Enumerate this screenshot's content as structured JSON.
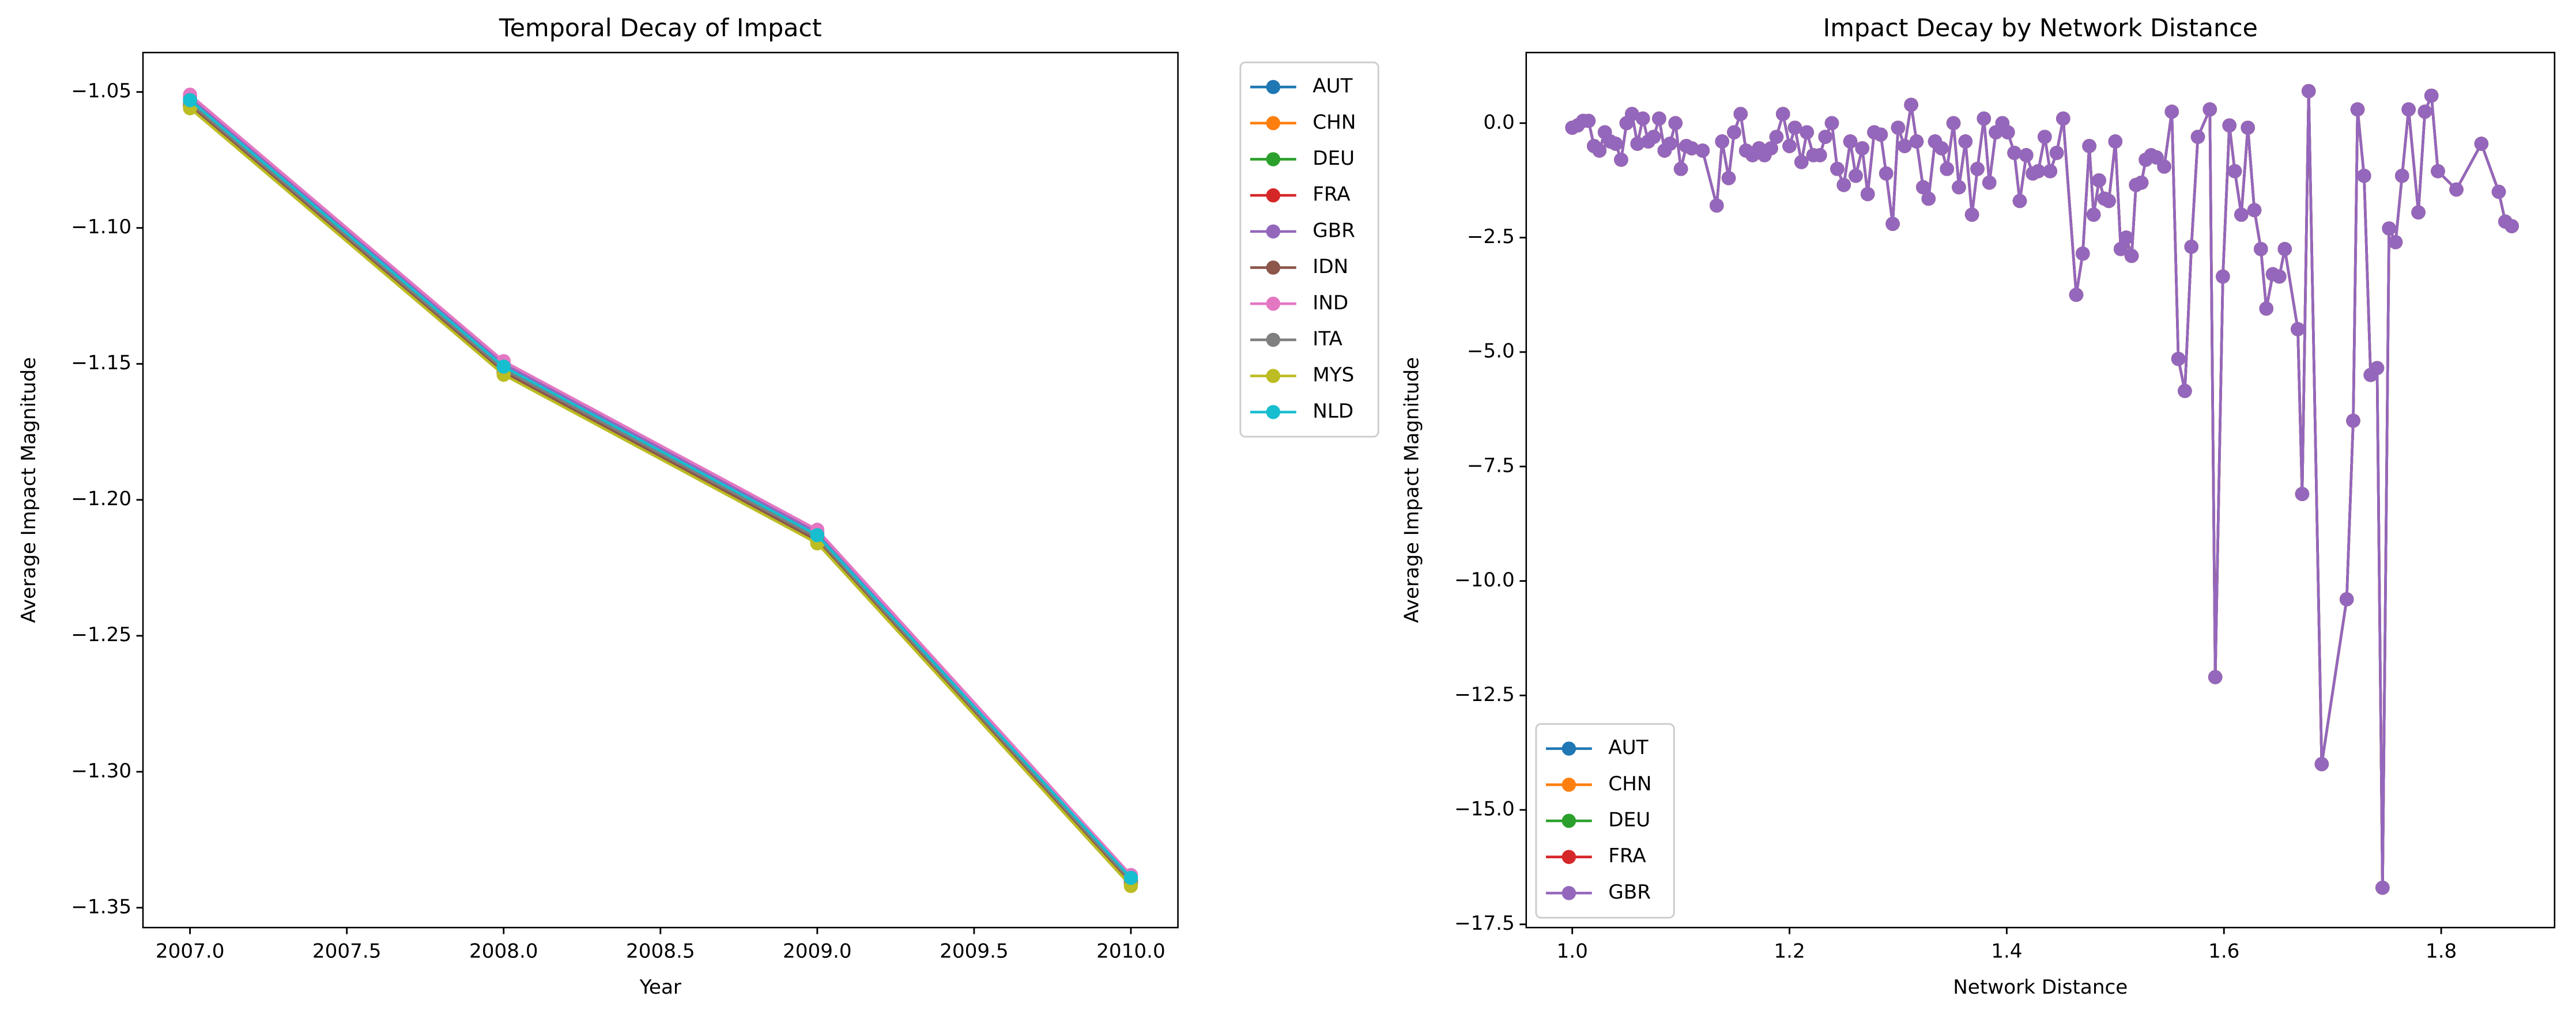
{
  "chart_data": [
    {
      "type": "line",
      "title": "Temporal Decay of Impact",
      "xlabel": "Year",
      "ylabel": "Average Impact Magnitude",
      "legend": "outside-upper-right",
      "x": [
        2007,
        2008,
        2009,
        2010
      ],
      "xlim": [
        2006.85,
        2010.15
      ],
      "xticks": [
        {
          "value": 2007,
          "label": "2007.0"
        },
        {
          "value": 2007.5,
          "label": "2007.5"
        },
        {
          "value": 2008,
          "label": "2008.0"
        },
        {
          "value": 2008.5,
          "label": "2008.5"
        },
        {
          "value": 2009,
          "label": "2009.0"
        },
        {
          "value": 2009.5,
          "label": "2009.5"
        },
        {
          "value": 2010,
          "label": "2010.0"
        }
      ],
      "ylim": [
        -1.3573,
        -1.0355
      ],
      "yticks": [
        {
          "value": -1.35,
          "label": "−1.35"
        },
        {
          "value": -1.3,
          "label": "−1.30"
        },
        {
          "value": -1.25,
          "label": "−1.25"
        },
        {
          "value": -1.2,
          "label": "−1.20"
        },
        {
          "value": -1.15,
          "label": "−1.15"
        },
        {
          "value": -1.1,
          "label": "−1.10"
        },
        {
          "value": -1.05,
          "label": "−1.05"
        }
      ],
      "series": [
        {
          "name": "AUT",
          "color": "#1f77b4",
          "values": [
            -1.053,
            -1.151,
            -1.213,
            -1.339
          ]
        },
        {
          "name": "CHN",
          "color": "#ff7f0e",
          "values": [
            -1.055,
            -1.153,
            -1.215,
            -1.341
          ]
        },
        {
          "name": "DEU",
          "color": "#2ca02c",
          "values": [
            -1.054,
            -1.152,
            -1.214,
            -1.34
          ]
        },
        {
          "name": "FRA",
          "color": "#d62728",
          "values": [
            -1.053,
            -1.151,
            -1.213,
            -1.34
          ]
        },
        {
          "name": "GBR",
          "color": "#9467bd",
          "values": [
            -1.052,
            -1.15,
            -1.212,
            -1.338
          ]
        },
        {
          "name": "IDN",
          "color": "#8c564b",
          "values": [
            -1.055,
            -1.153,
            -1.215,
            -1.341
          ]
        },
        {
          "name": "IND",
          "color": "#e377c2",
          "values": [
            -1.051,
            -1.149,
            -1.211,
            -1.338
          ]
        },
        {
          "name": "ITA",
          "color": "#7f7f7f",
          "values": [
            -1.054,
            -1.152,
            -1.214,
            -1.34
          ]
        },
        {
          "name": "MYS",
          "color": "#bcbd22",
          "values": [
            -1.056,
            -1.154,
            -1.216,
            -1.342
          ]
        },
        {
          "name": "NLD",
          "color": "#17becf",
          "values": [
            -1.053,
            -1.151,
            -1.213,
            -1.339
          ]
        }
      ]
    },
    {
      "type": "line",
      "title": "Impact Decay by Network Distance",
      "xlabel": "Network Distance",
      "ylabel": "Average Impact Magnitude",
      "legend": "lower-left",
      "x": [
        1.0,
        1.005,
        1.01,
        1.015,
        1.02,
        1.025,
        1.03,
        1.035,
        1.04,
        1.045,
        1.05,
        1.055,
        1.06,
        1.065,
        1.07,
        1.075,
        1.08,
        1.085,
        1.09,
        1.095,
        1.1,
        1.105,
        1.11,
        1.12,
        1.133,
        1.138,
        1.144,
        1.149,
        1.155,
        1.16,
        1.166,
        1.172,
        1.177,
        1.183,
        1.188,
        1.194,
        1.2,
        1.205,
        1.211,
        1.216,
        1.222,
        1.228,
        1.233,
        1.239,
        1.244,
        1.25,
        1.256,
        1.261,
        1.267,
        1.272,
        1.278,
        1.284,
        1.289,
        1.295,
        1.3,
        1.306,
        1.312,
        1.317,
        1.323,
        1.328,
        1.334,
        1.34,
        1.345,
        1.351,
        1.356,
        1.362,
        1.368,
        1.373,
        1.379,
        1.384,
        1.39,
        1.396,
        1.401,
        1.407,
        1.412,
        1.418,
        1.424,
        1.429,
        1.435,
        1.44,
        1.446,
        1.452,
        1.464,
        1.47,
        1.476,
        1.48,
        1.485,
        1.49,
        1.494,
        1.5,
        1.505,
        1.51,
        1.515,
        1.519,
        1.524,
        1.528,
        1.533,
        1.538,
        1.545,
        1.552,
        1.558,
        1.564,
        1.57,
        1.576,
        1.587,
        1.592,
        1.599,
        1.605,
        1.61,
        1.616,
        1.622,
        1.628,
        1.634,
        1.639,
        1.645,
        1.651,
        1.656,
        1.668,
        1.672,
        1.678,
        1.69,
        1.713,
        1.719,
        1.723,
        1.729,
        1.735,
        1.741,
        1.746,
        1.752,
        1.758,
        1.764,
        1.77,
        1.779,
        1.785,
        1.791,
        1.797,
        1.814,
        1.837,
        1.853,
        1.859,
        1.865
      ],
      "xlim": [
        0.9576,
        1.9044
      ],
      "xticks": [
        {
          "value": 1.0,
          "label": "1.0"
        },
        1.2,
        1.4,
        1.6,
        1.8
      ],
      "ylim": [
        -17.57,
        1.542
      ],
      "yticks": [
        {
          "value": -17.5,
          "label": "−17.5"
        },
        {
          "value": -15,
          "label": "−15.0"
        },
        {
          "value": -12.5,
          "label": "−12.5"
        },
        {
          "value": -10,
          "label": "−10.0"
        },
        {
          "value": -7.5,
          "label": "−7.5"
        },
        {
          "value": -5,
          "label": "−5.0"
        },
        {
          "value": -2.5,
          "label": "−2.5"
        },
        {
          "value": 0,
          "label": "0.0"
        }
      ],
      "series": [
        {
          "name": "AUT",
          "color": "#1f77b4",
          "values": [
            -0.1,
            -0.05,
            0.05,
            0.05,
            -0.5,
            -0.6,
            -0.2,
            -0.4,
            -0.45,
            -0.8,
            0.0,
            0.2,
            -0.45,
            0.1,
            -0.4,
            -0.3,
            0.1,
            -0.6,
            -0.45,
            0.0,
            -1.0,
            -0.5,
            -0.55,
            -0.6,
            -1.8,
            -0.4,
            -1.2,
            -0.2,
            0.2,
            -0.6,
            -0.7,
            -0.55,
            -0.7,
            -0.55,
            -0.3,
            0.2,
            -0.5,
            -0.1,
            -0.85,
            -0.2,
            -0.7,
            -0.7,
            -0.3,
            0.0,
            -1.0,
            -1.35,
            -0.4,
            -1.15,
            -0.55,
            -1.55,
            -0.2,
            -0.25,
            -1.1,
            -2.2,
            -0.1,
            -0.5,
            0.4,
            -0.4,
            -1.4,
            -1.65,
            -0.4,
            -0.55,
            -1.0,
            0.0,
            -1.4,
            -0.4,
            -2.0,
            -1.0,
            0.1,
            -1.3,
            -0.2,
            0.0,
            -0.2,
            -0.65,
            -1.7,
            -0.7,
            -1.1,
            -1.05,
            -0.3,
            -1.05,
            -0.65,
            0.1,
            -3.75,
            -2.85,
            -0.5,
            -2.0,
            -1.25,
            -1.65,
            -1.7,
            -0.4,
            -2.75,
            -2.5,
            -2.9,
            -1.35,
            -1.3,
            -0.8,
            -0.7,
            -0.75,
            -0.95,
            0.25,
            -5.15,
            -5.85,
            -2.7,
            -0.3,
            0.3,
            -12.1,
            -3.35,
            -0.05,
            -1.05,
            -2.0,
            -0.1,
            -1.9,
            -2.75,
            -4.05,
            -3.3,
            -3.35,
            -2.75,
            -4.5,
            -8.1,
            0.7,
            -14.0,
            -10.4,
            -6.5,
            0.3,
            -1.15,
            -5.5,
            -5.35,
            -16.7,
            -2.3,
            -2.6,
            -1.15,
            0.3,
            -1.95,
            0.25,
            0.6,
            -1.05,
            -1.45,
            -0.45,
            -1.5,
            -2.15,
            -2.25
          ]
        },
        {
          "name": "CHN",
          "color": "#ff7f0e",
          "values": [
            -0.1,
            -0.05,
            0.05,
            0.05,
            -0.5,
            -0.6,
            -0.2,
            -0.4,
            -0.45,
            -0.8,
            0.0,
            0.2,
            -0.45,
            0.1,
            -0.4,
            -0.3,
            0.1,
            -0.6,
            -0.45,
            0.0,
            -1.0,
            -0.5,
            -0.55,
            -0.6,
            -1.8,
            -0.4,
            -1.2,
            -0.2,
            0.2,
            -0.6,
            -0.7,
            -0.55,
            -0.7,
            -0.55,
            -0.3,
            0.2,
            -0.5,
            -0.1,
            -0.85,
            -0.2,
            -0.7,
            -0.7,
            -0.3,
            0.0,
            -1.0,
            -1.35,
            -0.4,
            -1.15,
            -0.55,
            -1.55,
            -0.2,
            -0.25,
            -1.1,
            -2.2,
            -0.1,
            -0.5,
            0.4,
            -0.4,
            -1.4,
            -1.65,
            -0.4,
            -0.55,
            -1.0,
            0.0,
            -1.4,
            -0.4,
            -2.0,
            -1.0,
            0.1,
            -1.3,
            -0.2,
            0.0,
            -0.2,
            -0.65,
            -1.7,
            -0.7,
            -1.1,
            -1.05,
            -0.3,
            -1.05,
            -0.65,
            0.1,
            -3.75,
            -2.85,
            -0.5,
            -2.0,
            -1.25,
            -1.65,
            -1.7,
            -0.4,
            -2.75,
            -2.5,
            -2.9,
            -1.35,
            -1.3,
            -0.8,
            -0.7,
            -0.75,
            -0.95,
            0.25,
            -5.15,
            -5.85,
            -2.7,
            -0.3,
            0.3,
            -12.1,
            -3.35,
            -0.05,
            -1.05,
            -2.0,
            -0.1,
            -1.9,
            -2.75,
            -4.05,
            -3.3,
            -3.35,
            -2.75,
            -4.5,
            -8.1,
            0.7,
            -14.0,
            -10.4,
            -6.5,
            0.3,
            -1.15,
            -5.5,
            -5.35,
            -16.7,
            -2.3,
            -2.6,
            -1.15,
            0.3,
            -1.95,
            0.25,
            0.6,
            -1.05,
            -1.45,
            -0.45,
            -1.5,
            -2.15,
            -2.25
          ]
        },
        {
          "name": "DEU",
          "color": "#2ca02c",
          "values": [
            -0.1,
            -0.05,
            0.05,
            0.05,
            -0.5,
            -0.6,
            -0.2,
            -0.4,
            -0.45,
            -0.8,
            0.0,
            0.2,
            -0.45,
            0.1,
            -0.4,
            -0.3,
            0.1,
            -0.6,
            -0.45,
            0.0,
            -1.0,
            -0.5,
            -0.55,
            -0.6,
            -1.8,
            -0.4,
            -1.2,
            -0.2,
            0.2,
            -0.6,
            -0.7,
            -0.55,
            -0.7,
            -0.55,
            -0.3,
            0.2,
            -0.5,
            -0.1,
            -0.85,
            -0.2,
            -0.7,
            -0.7,
            -0.3,
            0.0,
            -1.0,
            -1.35,
            -0.4,
            -1.15,
            -0.55,
            -1.55,
            -0.2,
            -0.25,
            -1.1,
            -2.2,
            -0.1,
            -0.5,
            0.4,
            -0.4,
            -1.4,
            -1.65,
            -0.4,
            -0.55,
            -1.0,
            0.0,
            -1.4,
            -0.4,
            -2.0,
            -1.0,
            0.1,
            -1.3,
            -0.2,
            0.0,
            -0.2,
            -0.65,
            -1.7,
            -0.7,
            -1.1,
            -1.05,
            -0.3,
            -1.05,
            -0.65,
            0.1,
            -3.75,
            -2.85,
            -0.5,
            -2.0,
            -1.25,
            -1.65,
            -1.7,
            -0.4,
            -2.75,
            -2.5,
            -2.9,
            -1.35,
            -1.3,
            -0.8,
            -0.7,
            -0.75,
            -0.95,
            0.25,
            -5.15,
            -5.85,
            -2.7,
            -0.3,
            0.3,
            -12.1,
            -3.35,
            -0.05,
            -1.05,
            -2.0,
            -0.1,
            -1.9,
            -2.75,
            -4.05,
            -3.3,
            -3.35,
            -2.75,
            -4.5,
            -8.1,
            0.7,
            -14.0,
            -10.4,
            -6.5,
            0.3,
            -1.15,
            -5.5,
            -5.35,
            -16.7,
            -2.3,
            -2.6,
            -1.15,
            0.3,
            -1.95,
            0.25,
            0.6,
            -1.05,
            -1.45,
            -0.45,
            -1.5,
            -2.15,
            -2.25
          ]
        },
        {
          "name": "FRA",
          "color": "#d62728",
          "values": [
            -0.1,
            -0.05,
            0.05,
            0.05,
            -0.5,
            -0.6,
            -0.2,
            -0.4,
            -0.45,
            -0.8,
            0.0,
            0.2,
            -0.45,
            0.1,
            -0.4,
            -0.3,
            0.1,
            -0.6,
            -0.45,
            0.0,
            -1.0,
            -0.5,
            -0.55,
            -0.6,
            -1.8,
            -0.4,
            -1.2,
            -0.2,
            0.2,
            -0.6,
            -0.7,
            -0.55,
            -0.7,
            -0.55,
            -0.3,
            0.2,
            -0.5,
            -0.1,
            -0.85,
            -0.2,
            -0.7,
            -0.7,
            -0.3,
            0.0,
            -1.0,
            -1.35,
            -0.4,
            -1.15,
            -0.55,
            -1.55,
            -0.2,
            -0.25,
            -1.1,
            -2.2,
            -0.1,
            -0.5,
            0.4,
            -0.4,
            -1.4,
            -1.65,
            -0.4,
            -0.55,
            -1.0,
            0.0,
            -1.4,
            -0.4,
            -2.0,
            -1.0,
            0.1,
            -1.3,
            -0.2,
            0.0,
            -0.2,
            -0.65,
            -1.7,
            -0.7,
            -1.1,
            -1.05,
            -0.3,
            -1.05,
            -0.65,
            0.1,
            -3.75,
            -2.85,
            -0.5,
            -2.0,
            -1.25,
            -1.65,
            -1.7,
            -0.4,
            -2.75,
            -2.5,
            -2.9,
            -1.35,
            -1.3,
            -0.8,
            -0.7,
            -0.75,
            -0.95,
            0.25,
            -5.15,
            -5.85,
            -2.7,
            -0.3,
            0.3,
            -12.1,
            -3.35,
            -0.05,
            -1.05,
            -2.0,
            -0.1,
            -1.9,
            -2.75,
            -4.05,
            -3.3,
            -3.35,
            -2.75,
            -4.5,
            -8.1,
            0.7,
            -14.0,
            -10.4,
            -6.5,
            0.3,
            -1.15,
            -5.5,
            -5.35,
            -16.7,
            -2.3,
            -2.6,
            -1.15,
            0.3,
            -1.95,
            0.25,
            0.6,
            -1.05,
            -1.45,
            -0.45,
            -1.5,
            -2.15,
            -2.25
          ]
        },
        {
          "name": "GBR",
          "color": "#9467bd",
          "values": [
            -0.1,
            -0.05,
            0.05,
            0.05,
            -0.5,
            -0.6,
            -0.2,
            -0.4,
            -0.45,
            -0.8,
            0.0,
            0.2,
            -0.45,
            0.1,
            -0.4,
            -0.3,
            0.1,
            -0.6,
            -0.45,
            0.0,
            -1.0,
            -0.5,
            -0.55,
            -0.6,
            -1.8,
            -0.4,
            -1.2,
            -0.2,
            0.2,
            -0.6,
            -0.7,
            -0.55,
            -0.7,
            -0.55,
            -0.3,
            0.2,
            -0.5,
            -0.1,
            -0.85,
            -0.2,
            -0.7,
            -0.7,
            -0.3,
            0.0,
            -1.0,
            -1.35,
            -0.4,
            -1.15,
            -0.55,
            -1.55,
            -0.2,
            -0.25,
            -1.1,
            -2.2,
            -0.1,
            -0.5,
            0.4,
            -0.4,
            -1.4,
            -1.65,
            -0.4,
            -0.55,
            -1.0,
            0.0,
            -1.4,
            -0.4,
            -2.0,
            -1.0,
            0.1,
            -1.3,
            -0.2,
            0.0,
            -0.2,
            -0.65,
            -1.7,
            -0.7,
            -1.1,
            -1.05,
            -0.3,
            -1.05,
            -0.65,
            0.1,
            -3.75,
            -2.85,
            -0.5,
            -2.0,
            -1.25,
            -1.65,
            -1.7,
            -0.4,
            -2.75,
            -2.5,
            -2.9,
            -1.35,
            -1.3,
            -0.8,
            -0.7,
            -0.75,
            -0.95,
            0.25,
            -5.15,
            -5.85,
            -2.7,
            -0.3,
            0.3,
            -12.1,
            -3.35,
            -0.05,
            -1.05,
            -2.0,
            -0.1,
            -1.9,
            -2.75,
            -4.05,
            -3.3,
            -3.35,
            -2.75,
            -4.5,
            -8.1,
            0.7,
            -14.0,
            -10.4,
            -6.5,
            0.3,
            -1.15,
            -5.5,
            -5.35,
            -16.7,
            -2.3,
            -2.6,
            -1.15,
            0.3,
            -1.95,
            0.25,
            0.6,
            -1.05,
            -1.45,
            -0.45,
            -1.5,
            -2.15,
            -2.25
          ]
        }
      ]
    }
  ]
}
